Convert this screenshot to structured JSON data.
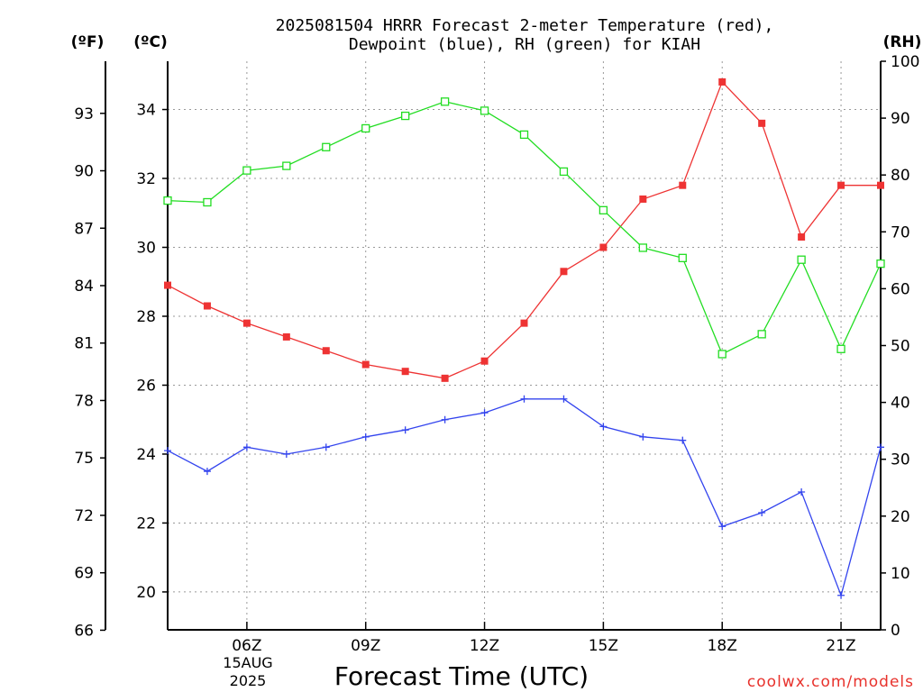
{
  "chart_data": {
    "type": "line",
    "title_line1": "2025081504 HRRR Forecast 2-meter Temperature (red),",
    "title_line2": "Dewpoint (blue), RH (green) for KIAH",
    "xlabel": "Forecast Time (UTC)",
    "date_label": [
      "15AUG",
      "2025"
    ],
    "credit": "coolwx.com/models",
    "units": {
      "fahrenheit": "(ºF)",
      "celsius": "(ºC)",
      "rh": "(RH)"
    },
    "x_ticks": [
      {
        "hour": 6,
        "label": "06Z"
      },
      {
        "hour": 9,
        "label": "09Z"
      },
      {
        "hour": 12,
        "label": "12Z"
      },
      {
        "hour": 15,
        "label": "15Z"
      },
      {
        "hour": 18,
        "label": "18Z"
      },
      {
        "hour": 21,
        "label": "21Z"
      }
    ],
    "xlim": [
      4,
      22
    ],
    "celsius_axis": {
      "ylim": [
        18.9,
        35.4
      ],
      "ticks": [
        20,
        22,
        24,
        26,
        28,
        30,
        32,
        34
      ]
    },
    "fahrenheit_axis": {
      "ticks": [
        66,
        69,
        72,
        75,
        78,
        81,
        84,
        87,
        90,
        93
      ]
    },
    "rh_axis": {
      "ylim": [
        0,
        100
      ],
      "ticks": [
        0,
        10,
        20,
        30,
        40,
        50,
        60,
        70,
        80,
        90,
        100
      ]
    },
    "x": [
      4,
      5,
      6,
      7,
      8,
      9,
      10,
      11,
      12,
      13,
      14,
      15,
      16,
      17,
      18,
      19,
      20,
      21,
      22
    ],
    "series": [
      {
        "name": "Temperature",
        "color": "#ee3333",
        "marker": "filled-square",
        "axis": "celsius",
        "values": [
          28.9,
          28.3,
          27.8,
          27.4,
          27.0,
          26.6,
          26.4,
          26.2,
          26.7,
          27.8,
          29.3,
          30.0,
          31.4,
          31.8,
          34.8,
          33.6,
          30.3,
          31.8,
          31.8
        ]
      },
      {
        "name": "Dewpoint",
        "color": "#3344ee",
        "marker": "plus",
        "axis": "celsius",
        "values": [
          24.1,
          23.5,
          24.2,
          24.0,
          24.2,
          24.5,
          24.7,
          25.0,
          25.2,
          25.6,
          25.6,
          24.8,
          24.5,
          24.4,
          21.9,
          22.3,
          22.9,
          19.9,
          24.2
        ]
      },
      {
        "name": "RH",
        "color": "#22dd22",
        "marker": "open-square",
        "axis": "rh",
        "values": [
          75.5,
          75.2,
          80.8,
          81.6,
          84.9,
          88.2,
          90.4,
          92.9,
          91.3,
          87.1,
          80.6,
          73.8,
          67.2,
          65.4,
          48.5,
          52.0,
          65.1,
          49.4,
          64.4
        ]
      }
    ]
  }
}
